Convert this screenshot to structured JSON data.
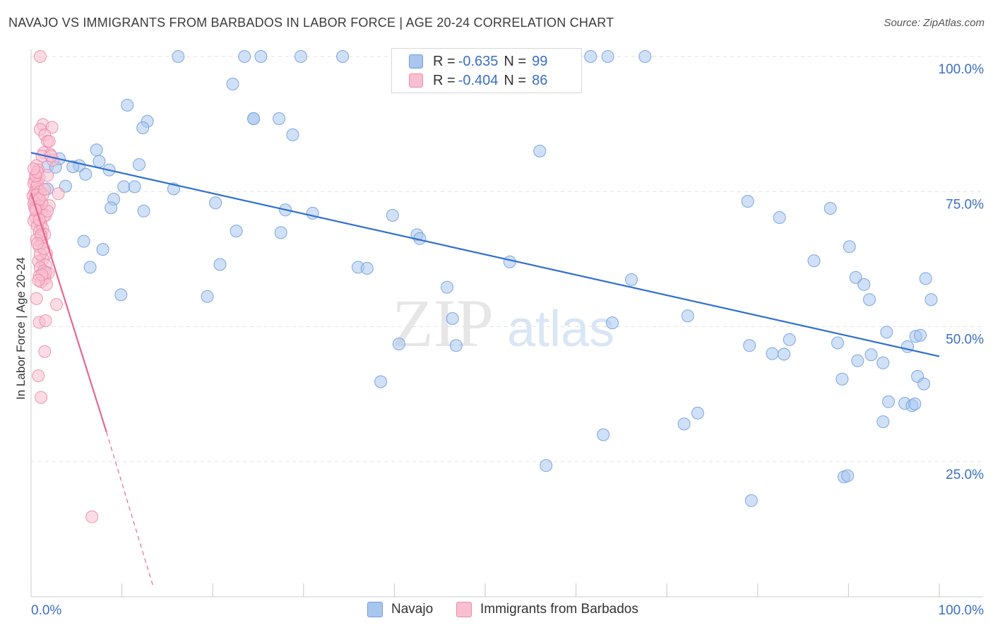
{
  "title": "NAVAJO VS IMMIGRANTS FROM BARBADOS IN LABOR FORCE | AGE 20-24 CORRELATION CHART",
  "source": "Source: ZipAtlas.com",
  "watermark": {
    "zip": "ZIP",
    "atlas": "atlas"
  },
  "legend_top": [
    {
      "r_label": "R =",
      "r_value": "-0.635",
      "n_label": "N =",
      "n_value": "99",
      "color": "#a9c6ef",
      "border": "#6f9ee0"
    },
    {
      "r_label": "R =",
      "r_value": "-0.404",
      "n_label": "N =",
      "n_value": "86",
      "color": "#f8bfd0",
      "border": "#ee8aa8"
    }
  ],
  "legend_bottom": [
    {
      "label": "Navajo",
      "color": "#a9c6ef",
      "border": "#6f9ee0"
    },
    {
      "label": "Immigrants from Barbados",
      "color": "#f8bfd0",
      "border": "#ee8aa8"
    }
  ],
  "chart_data": {
    "type": "scatter",
    "title": "NAVAJO VS IMMIGRANTS FROM BARBADOS IN LABOR FORCE | AGE 20-24 CORRELATION CHART",
    "xlabel": "",
    "ylabel": "In Labor Force | Age 20-24",
    "xlim": [
      0,
      100
    ],
    "ylim": [
      0,
      100
    ],
    "x_tick_labels": [
      "0.0%",
      "100.0%"
    ],
    "y_tick_labels": [
      "25.0%",
      "50.0%",
      "75.0%",
      "100.0%"
    ],
    "y_ticks": [
      25,
      50,
      75,
      100
    ],
    "grid": true,
    "series": [
      {
        "name": "Navajo",
        "color": "#6f9ee0",
        "fill": "#a9c6ef",
        "trend": {
          "x0": 0,
          "y0": 82.2,
          "x1": 100,
          "y1": 44.5
        },
        "points": [
          [
            16.2,
            100
          ],
          [
            23.5,
            100
          ],
          [
            25.3,
            100
          ],
          [
            29.7,
            100
          ],
          [
            34.3,
            100
          ],
          [
            55.1,
            100
          ],
          [
            61.6,
            100
          ],
          [
            63.5,
            100
          ],
          [
            67.6,
            100
          ],
          [
            22.2,
            94.9
          ],
          [
            10.6,
            91
          ],
          [
            12.8,
            88
          ],
          [
            12.3,
            86.8
          ],
          [
            24.5,
            88.5
          ],
          [
            27.3,
            88.5
          ],
          [
            28.8,
            85.5
          ],
          [
            1.8,
            79.6
          ],
          [
            2.7,
            79.5
          ],
          [
            3.1,
            81.1
          ],
          [
            5.3,
            79.8
          ],
          [
            4.6,
            79.6
          ],
          [
            6.0,
            78.2
          ],
          [
            7.2,
            82.7
          ],
          [
            7.5,
            80.6
          ],
          [
            11.9,
            80
          ],
          [
            3.8,
            76
          ],
          [
            10.2,
            75.9
          ],
          [
            11.4,
            75.9
          ],
          [
            9.1,
            73.6
          ],
          [
            8.8,
            72
          ],
          [
            15.7,
            75.5
          ],
          [
            12.4,
            71.4
          ],
          [
            20.3,
            72.9
          ],
          [
            22.6,
            67.7
          ],
          [
            28.0,
            71.6
          ],
          [
            31.0,
            71
          ],
          [
            27.5,
            67.4
          ],
          [
            39.8,
            70.6
          ],
          [
            56.0,
            82.5
          ],
          [
            42.5,
            67
          ],
          [
            42.8,
            66.3
          ],
          [
            5.8,
            65.8
          ],
          [
            7.9,
            64.3
          ],
          [
            6.5,
            61
          ],
          [
            20.8,
            61.5
          ],
          [
            36.0,
            61
          ],
          [
            37.0,
            60.8
          ],
          [
            52.7,
            62
          ],
          [
            9.9,
            55.9
          ],
          [
            19.4,
            55.6
          ],
          [
            66.1,
            58.7
          ],
          [
            45.8,
            57.3
          ],
          [
            46.4,
            51.5
          ],
          [
            46.8,
            46.5
          ],
          [
            40.5,
            46.8
          ],
          [
            64.0,
            50.7
          ],
          [
            72.3,
            52
          ],
          [
            78.9,
            73.2
          ],
          [
            82.4,
            70.2
          ],
          [
            88.0,
            71.9
          ],
          [
            90.1,
            64.8
          ],
          [
            86.2,
            62.2
          ],
          [
            90.8,
            59.1
          ],
          [
            91.7,
            57.8
          ],
          [
            92.3,
            55
          ],
          [
            98.5,
            58.9
          ],
          [
            99.1,
            55
          ],
          [
            94.2,
            49
          ],
          [
            96.5,
            46.3
          ],
          [
            97.4,
            48.2
          ],
          [
            97.9,
            48.4
          ],
          [
            83.5,
            47.6
          ],
          [
            88.8,
            47
          ],
          [
            79.1,
            46.5
          ],
          [
            81.6,
            45
          ],
          [
            82.9,
            44.9
          ],
          [
            91.0,
            43.7
          ],
          [
            92.5,
            44.8
          ],
          [
            93.8,
            43.3
          ],
          [
            89.3,
            40.3
          ],
          [
            97.6,
            40.8
          ],
          [
            98.3,
            39.4
          ],
          [
            38.5,
            39.8
          ],
          [
            94.4,
            36.1
          ],
          [
            96.2,
            35.8
          ],
          [
            97.0,
            35.4
          ],
          [
            97.3,
            35.7
          ],
          [
            73.4,
            34
          ],
          [
            71.9,
            32
          ],
          [
            93.8,
            32.4
          ],
          [
            63.0,
            30
          ],
          [
            56.7,
            24.3
          ],
          [
            89.5,
            22.2
          ],
          [
            89.9,
            22.4
          ],
          [
            79.3,
            17.8
          ],
          [
            55.1,
            100
          ],
          [
            24.5,
            88.5
          ],
          [
            8.6,
            79
          ],
          [
            1.8,
            75.5
          ]
        ]
      },
      {
        "name": "Immigrants from Barbados",
        "color": "#ee8aa8",
        "fill": "#f8bfd0",
        "trend": {
          "x0": 0,
          "y0": 74.8,
          "x1": 8.3,
          "y1": 30.5
        },
        "trend_dashed": {
          "x0": 8.3,
          "y0": 30.5,
          "x1": 13.5,
          "y1": 1.6
        },
        "points": [
          [
            1.0,
            100
          ],
          [
            1.3,
            87.4
          ],
          [
            2.3,
            86.9
          ],
          [
            1.0,
            86.5
          ],
          [
            1.5,
            85.5
          ],
          [
            1.8,
            84.3
          ],
          [
            2.0,
            84.3
          ],
          [
            1.4,
            82.2
          ],
          [
            2.1,
            81.9
          ],
          [
            1.2,
            81.6
          ],
          [
            2.4,
            80.8
          ],
          [
            0.6,
            79.8
          ],
          [
            0.8,
            79
          ],
          [
            0.5,
            78.1
          ],
          [
            0.9,
            77.5
          ],
          [
            0.4,
            77.1
          ],
          [
            0.3,
            76.5
          ],
          [
            0.6,
            75.8
          ],
          [
            0.8,
            75.4
          ],
          [
            0.4,
            74.8
          ],
          [
            0.2,
            74.2
          ],
          [
            0.5,
            73.7
          ],
          [
            0.7,
            73.2
          ],
          [
            0.3,
            72.8
          ],
          [
            0.9,
            72.2
          ],
          [
            0.6,
            71.8
          ],
          [
            1.2,
            71.3
          ],
          [
            0.8,
            70.8
          ],
          [
            1.4,
            70.4
          ],
          [
            0.5,
            70.2
          ],
          [
            0.3,
            69.6
          ],
          [
            1.1,
            69
          ],
          [
            0.7,
            68.6
          ],
          [
            1.3,
            68.1
          ],
          [
            0.9,
            67.6
          ],
          [
            1.5,
            67.1
          ],
          [
            1.1,
            66.5
          ],
          [
            0.6,
            66.1
          ],
          [
            1.2,
            65.5
          ],
          [
            0.9,
            64.8
          ],
          [
            1.7,
            63.5
          ],
          [
            1.3,
            62.5
          ],
          [
            0.8,
            62.1
          ],
          [
            1.6,
            61.4
          ],
          [
            1.0,
            60.9
          ],
          [
            1.4,
            60.3
          ],
          [
            1.9,
            59.9
          ],
          [
            0.9,
            59.4
          ],
          [
            1.5,
            58.9
          ],
          [
            1.1,
            58.3
          ],
          [
            1.7,
            57.8
          ],
          [
            0.6,
            55.2
          ],
          [
            2.8,
            54.1
          ],
          [
            0.9,
            50.8
          ],
          [
            1.6,
            51.1
          ],
          [
            1.5,
            45.4
          ],
          [
            0.8,
            40.9
          ],
          [
            1.1,
            36.9
          ],
          [
            6.7,
            14.8
          ],
          [
            3.0,
            74.6
          ],
          [
            1.6,
            70.6
          ],
          [
            0.4,
            73.4
          ],
          [
            2.0,
            72.4
          ],
          [
            1.8,
            71.4
          ],
          [
            1.2,
            72.8
          ],
          [
            0.7,
            76.3
          ],
          [
            0.5,
            77.9
          ],
          [
            1.0,
            75.0
          ],
          [
            0.6,
            74.4
          ],
          [
            0.4,
            72.0
          ],
          [
            1.3,
            74.4
          ],
          [
            0.9,
            73.6
          ],
          [
            1.5,
            75.4
          ],
          [
            0.7,
            78.6
          ],
          [
            0.3,
            79.2
          ],
          [
            1.6,
            60.0
          ],
          [
            1.2,
            59.6
          ],
          [
            0.8,
            58.6
          ],
          [
            1.0,
            63.4
          ],
          [
            1.4,
            64.4
          ],
          [
            2.2,
            81.6
          ],
          [
            1.8,
            78.0
          ],
          [
            0.5,
            71.6
          ],
          [
            0.9,
            69.8
          ],
          [
            1.1,
            67.0
          ],
          [
            0.7,
            65.4
          ]
        ]
      }
    ]
  }
}
